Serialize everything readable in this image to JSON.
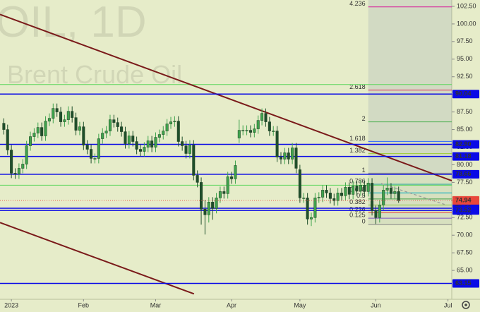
{
  "chart_data": {
    "type": "candlestick",
    "symbol": "OIL, 1D",
    "name": "Brent Crude Oil",
    "up_color": "#3fa34d",
    "down_color": "#1f4f2b",
    "xlim": [
      -1,
      118
    ],
    "ylim": [
      60.9,
      103.4
    ],
    "xticks": [
      {
        "value": 2,
        "label": "2023"
      },
      {
        "value": 21,
        "label": "Feb"
      },
      {
        "value": 40,
        "label": "Mar"
      },
      {
        "value": 60,
        "label": "Apr"
      },
      {
        "value": 78,
        "label": "May"
      },
      {
        "value": 98,
        "label": "Jun"
      },
      {
        "value": 117,
        "label": "Jul"
      }
    ],
    "yticks": [
      {
        "value": 102.5,
        "label": "102.50"
      },
      {
        "value": 100,
        "label": "100.00"
      },
      {
        "value": 97.5,
        "label": "97.50"
      },
      {
        "value": 95,
        "label": "95.00"
      },
      {
        "value": 92.5,
        "label": "92.50"
      },
      {
        "value": 90,
        "label": "90.00"
      },
      {
        "value": 87.5,
        "label": "87.50"
      },
      {
        "value": 85,
        "label": "85.00"
      },
      {
        "value": 82.5,
        "label": "82.50"
      },
      {
        "value": 80,
        "label": "80.00"
      },
      {
        "value": 77.5,
        "label": "77.50"
      },
      {
        "value": 75,
        "label": "75.00"
      },
      {
        "value": 72.5,
        "label": "72.50"
      },
      {
        "value": 70,
        "label": "70.00"
      },
      {
        "value": 67.5,
        "label": "67.50"
      },
      {
        "value": 65,
        "label": "65.00"
      }
    ],
    "open": [
      85.9,
      85.0,
      82.1,
      78.8,
      78.7,
      79.5,
      80.1,
      82.7,
      84.0,
      84.5,
      85.3,
      84.1,
      86.2,
      86.6,
      88.0,
      87.5,
      86.1,
      86.4,
      87.6,
      86.7,
      84.9,
      85.4,
      82.8,
      82.2,
      80.9,
      80.9,
      83.7,
      84.5,
      84.8,
      86.4,
      86.0,
      85.4,
      84.7,
      83.0,
      84.1,
      83.3,
      82.2,
      81.9,
      82.5,
      83.4,
      82.5,
      83.9,
      84.3,
      84.8,
      85.8,
      86.1,
      86.2,
      83.3,
      82.7,
      81.6,
      82.8,
      78.5,
      77.5,
      73.7,
      72.9,
      74.7,
      73.8,
      75.3,
      76.2,
      75.9,
      78.3,
      78.0,
      83.8,
      84.9,
      84.9,
      84.9,
      84.6,
      85.1,
      86.3,
      87.3,
      86.1,
      84.8,
      84.8,
      81.1,
      80.8,
      81.7,
      80.8,
      82.4,
      79.3,
      75.3,
      75.3,
      72.3,
      72.5,
      75.3,
      75.4,
      76.4,
      76.0,
      75.2,
      74.9,
      76.0,
      75.6,
      76.8,
      75.8,
      77.0,
      76.3,
      77.1,
      76.2,
      77.4,
      73.5,
      72.5,
      74.3,
      76.4,
      76.7,
      75.9,
      76.2
    ],
    "high": [
      86.6,
      85.7,
      82.8,
      79.5,
      80.2,
      80.8,
      83.4,
      84.7,
      85.2,
      86.0,
      86.0,
      86.9,
      87.3,
      88.7,
      88.7,
      88.2,
      87.1,
      88.3,
      88.3,
      87.4,
      86.1,
      86.1,
      83.5,
      82.9,
      81.6,
      84.4,
      85.2,
      85.5,
      87.1,
      87.1,
      86.7,
      86.1,
      85.4,
      84.8,
      84.8,
      84.0,
      82.9,
      83.2,
      84.1,
      84.1,
      84.6,
      85.0,
      85.5,
      86.5,
      86.8,
      86.9,
      86.9,
      84.0,
      83.4,
      83.5,
      83.5,
      79.2,
      78.2,
      75.0,
      75.4,
      75.4,
      76.0,
      76.9,
      76.9,
      79.0,
      79.0,
      80.6,
      86.4,
      85.6,
      85.6,
      85.6,
      85.8,
      87.0,
      88.0,
      88.0,
      86.8,
      85.5,
      85.5,
      81.8,
      82.4,
      82.4,
      83.1,
      83.1,
      80.0,
      76.0,
      76.0,
      73.2,
      76.0,
      76.1,
      77.1,
      77.1,
      76.7,
      75.9,
      76.7,
      76.7,
      77.5,
      77.5,
      77.7,
      77.7,
      77.8,
      77.8,
      78.1,
      78.1,
      74.2,
      75.0,
      77.1,
      78.2,
      77.4,
      76.9,
      76.9
    ],
    "low": [
      84.3,
      81.4,
      78.1,
      78.0,
      78.0,
      78.8,
      79.4,
      82.0,
      83.3,
      83.8,
      83.4,
      83.4,
      85.5,
      85.9,
      86.8,
      85.4,
      85.4,
      85.7,
      86.0,
      84.2,
      84.2,
      82.1,
      81.5,
      80.2,
      80.2,
      80.2,
      83.0,
      83.8,
      84.1,
      85.3,
      84.7,
      84.0,
      82.3,
      82.3,
      82.6,
      81.5,
      81.2,
      81.2,
      81.8,
      81.8,
      81.8,
      83.2,
      83.6,
      84.1,
      85.1,
      85.4,
      82.6,
      82.0,
      80.9,
      80.9,
      77.8,
      76.8,
      71.5,
      70.1,
      71.8,
      72.2,
      73.1,
      74.6,
      75.2,
      75.2,
      77.3,
      77.3,
      83.1,
      84.2,
      84.2,
      83.9,
      83.9,
      84.4,
      85.6,
      85.4,
      84.1,
      84.1,
      80.4,
      80.1,
      80.1,
      80.1,
      80.1,
      78.8,
      74.6,
      74.6,
      71.5,
      71.3,
      71.8,
      74.6,
      74.7,
      75.3,
      74.5,
      74.2,
      74.2,
      74.9,
      74.9,
      75.1,
      75.1,
      75.6,
      75.6,
      75.5,
      75.5,
      72.8,
      71.6,
      71.8,
      73.6,
      75.7,
      75.2,
      75.2,
      74.6
    ],
    "close": [
      85.0,
      82.1,
      78.8,
      78.7,
      79.5,
      80.1,
      82.7,
      84.0,
      84.5,
      85.3,
      84.1,
      86.2,
      86.6,
      88.0,
      87.5,
      86.1,
      86.4,
      87.6,
      86.7,
      84.9,
      85.4,
      82.8,
      82.2,
      80.9,
      80.9,
      83.7,
      84.5,
      84.8,
      86.4,
      86.0,
      85.4,
      84.7,
      83.0,
      84.1,
      83.3,
      82.2,
      81.9,
      82.5,
      83.4,
      82.5,
      83.9,
      84.3,
      84.8,
      85.8,
      86.1,
      86.2,
      83.3,
      82.7,
      81.6,
      82.8,
      78.5,
      77.5,
      73.7,
      72.9,
      74.7,
      73.8,
      75.3,
      76.2,
      75.9,
      78.3,
      78.0,
      79.9,
      84.9,
      84.9,
      84.9,
      84.6,
      85.1,
      86.3,
      87.3,
      86.1,
      84.8,
      84.8,
      81.1,
      80.8,
      81.7,
      80.8,
      82.4,
      79.5,
      75.3,
      75.3,
      72.3,
      72.5,
      75.3,
      75.4,
      76.4,
      76.0,
      75.2,
      74.9,
      76.0,
      75.6,
      76.8,
      75.8,
      77.0,
      76.3,
      77.1,
      76.2,
      77.4,
      73.5,
      72.5,
      74.3,
      76.4,
      76.7,
      75.9,
      76.2,
      74.9
    ],
    "levels": [
      90.04,
      {
        "value": 82.9,
        "label": "82.90"
      },
      81.18,
      78.66,
      73.83,
      73.52,
      63.15
    ],
    "level_color": "#0a0ae6",
    "last_price": 74.94,
    "last_price_color": "#e8473b",
    "green_lines": [
      91.4,
      77.1
    ],
    "green_line_color": "#5cd65c",
    "fib": {
      "low": 71.5,
      "high": 78.8,
      "start": 96,
      "levels": [
        4.236,
        2.618,
        2,
        1.618,
        1.382,
        1,
        0.786,
        0.618,
        0.5,
        0.382,
        0.236,
        0.125,
        0
      ],
      "colors": [
        "#d81b9a",
        "#e0245e",
        "#4caf50",
        "#2962ff",
        "#9ccc30",
        "#888888",
        "#26a69a",
        "#00acc1",
        "#43a047",
        "#8bc34a",
        "#e53935",
        "#7e57c2",
        "#888888"
      ]
    },
    "trendlines": [
      {
        "x": [
          -1,
          118
        ],
        "y": [
          101.35,
          77.74
        ]
      },
      {
        "x": [
          -1,
          50.1
        ],
        "y": [
          71.79,
          61.67
        ]
      }
    ],
    "projection": {
      "x": [
        99.4,
        116.1
      ],
      "y": [
        77.34,
        74.37
      ]
    },
    "trend_color": "#7a1a1a"
  }
}
